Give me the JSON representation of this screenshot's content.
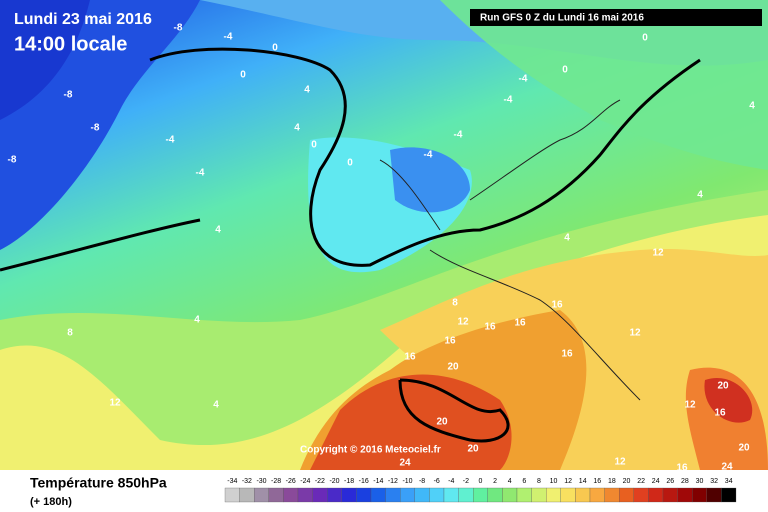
{
  "header": {
    "date": "Lundi 23 mai 2016",
    "time": "14:00 locale",
    "run": "Run GFS 0 Z du Lundi 16 mai 2016",
    "copyright": "Copyright © 2016 Meteociel.fr"
  },
  "footer": {
    "title": "Température 850hPa",
    "lead": "(+ 180h)"
  },
  "contour_labels": [
    -8,
    -8,
    -8,
    -8,
    -4,
    -4,
    -4,
    -4,
    -4,
    -4,
    -4,
    0,
    0,
    0,
    0,
    0,
    0,
    4,
    4,
    4,
    4,
    4,
    4,
    4,
    4,
    8,
    8,
    12,
    12,
    12,
    12,
    12,
    12,
    16,
    16,
    16,
    16,
    16,
    16,
    16,
    16,
    20,
    20,
    20,
    20,
    20,
    24,
    24
  ],
  "legend": {
    "ticks": [
      -34,
      -32,
      -30,
      -28,
      -26,
      -24,
      -22,
      -20,
      -18,
      -16,
      -14,
      -12,
      -10,
      -8,
      -6,
      -4,
      -2,
      0,
      2,
      4,
      6,
      8,
      10,
      12,
      14,
      16,
      18,
      20,
      22,
      24,
      26,
      28,
      30,
      32,
      34
    ],
    "colors": [
      "#d0d0d0",
      "#b8b8b8",
      "#a090a8",
      "#906898",
      "#8a4a9a",
      "#7a3aa8",
      "#6a2ab8",
      "#4a2ac8",
      "#2a2ad8",
      "#1a40e0",
      "#1a60e8",
      "#2a80f0",
      "#3aa0f8",
      "#40b8f8",
      "#50d0f8",
      "#60e8f0",
      "#60f0d0",
      "#60f0a0",
      "#70e880",
      "#90e870",
      "#b0f070",
      "#d0f070",
      "#f0f070",
      "#f8e060",
      "#f8c850",
      "#f8a840",
      "#f08830",
      "#e86020",
      "#e04020",
      "#d02818",
      "#b81810",
      "#a00808",
      "#800000",
      "#500000",
      "#000000"
    ]
  }
}
